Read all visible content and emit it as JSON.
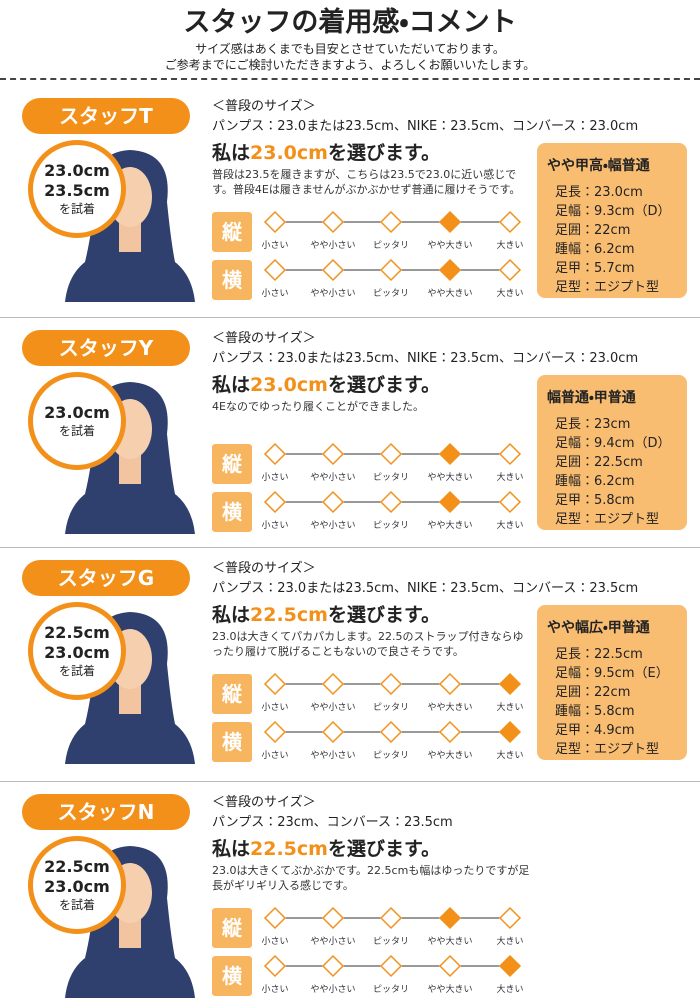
{
  "header": {
    "title": "スタッフの着用感・コメント",
    "subtitle": [
      "サイズ感はあくまでも目安とさせていただいております。",
      "ご参考までにご検討いただきますよう、よろしくお願いいたします。"
    ]
  },
  "scale_labels": [
    "小さい",
    "やや小さい",
    "ピッタリ",
    "やや大きい",
    "大きい"
  ],
  "staff": [
    {
      "name": "スタッフT",
      "tried": [
        "23.0cm",
        "23.5cm"
      ],
      "tried_label": "を試着",
      "usual_label": "＜普段のサイズ＞",
      "usual": "パンプス：23.0または23.5cm、NIKE：23.5cm、コンバース：23.0cm",
      "choice": {
        "prefix": "私は",
        "size": "23.0cm",
        "suffix": "を選びます。"
      },
      "comment": "普段は23.5を履きますが、こちらは23.5で23.0に近い感じです。普段4Eは履きませんがぶかぶかせず普通に履けそうです。",
      "scales": [
        {
          "label": "縦",
          "selected": 3
        },
        {
          "label": "横",
          "selected": 3
        }
      ],
      "foot": {
        "heading": "やや甲高・幅普通",
        "lines": [
          "足長：23.0cm",
          "足幅：9.3cm（D）",
          "足囲：22cm",
          "踵幅：6.2cm",
          "足甲：5.7cm",
          "足型：エジプト型"
        ]
      }
    },
    {
      "name": "スタッフY",
      "tried": [
        "23.0cm"
      ],
      "tried_label": "を試着",
      "usual_label": "＜普段のサイズ＞",
      "usual": "パンプス：23.0または23.5cm、NIKE：23.5cm、コンバース：23.0cm",
      "choice": {
        "prefix": "私は",
        "size": "23.0cm",
        "suffix": "を選びます。"
      },
      "comment": "4Eなのでゆったり履くことができました。",
      "scales": [
        {
          "label": "縦",
          "selected": 3
        },
        {
          "label": "横",
          "selected": 3
        }
      ],
      "foot": {
        "heading": "幅普通・甲普通",
        "lines": [
          "足長：23cm",
          "足幅：9.4cm（D）",
          "足囲：22.5cm",
          "踵幅：6.2cm",
          "足甲：5.8cm",
          "足型：エジプト型"
        ]
      }
    },
    {
      "name": "スタッフG",
      "tried": [
        "22.5cm",
        "23.0cm"
      ],
      "tried_label": "を試着",
      "usual_label": "＜普段のサイズ＞",
      "usual": "パンプス：23.0または23.5cm、NIKE：23.5cm、コンバース：23.5cm",
      "choice": {
        "prefix": "私は",
        "size": "22.5cm",
        "suffix": "を選びます。"
      },
      "comment": "23.0は大きくてパカパカします。22.5のストラップ付きならゆったり履けて脱げることもないので良さそうです。",
      "scales": [
        {
          "label": "縦",
          "selected": 4
        },
        {
          "label": "横",
          "selected": 4
        }
      ],
      "foot": {
        "heading": "やや幅広・甲普通",
        "lines": [
          "足長：22.5cm",
          "足幅：9.5cm（E）",
          "足囲：22cm",
          "踵幅：5.8cm",
          "足甲：4.9cm",
          "足型：エジプト型"
        ]
      }
    },
    {
      "name": "スタッフN",
      "tried": [
        "22.5cm",
        "23.0cm"
      ],
      "tried_label": "を試着",
      "usual_label": "＜普段のサイズ＞",
      "usual": "パンプス：23cm、コンバース：23.5cm",
      "choice": {
        "prefix": "私は",
        "size": "22.5cm",
        "suffix": "を選びます。"
      },
      "comment": "23.0は大きくてぶかぶかです。22.5cmも幅はゆったりですが足長がギリギリ入る感じです。",
      "scales": [
        {
          "label": "縦",
          "selected": 3
        },
        {
          "label": "横",
          "selected": 4
        }
      ]
    }
  ]
}
